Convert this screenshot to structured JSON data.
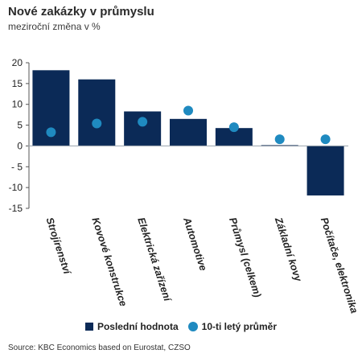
{
  "header": {
    "title": "Nové zakázky v průmyslu",
    "subtitle": "meziroční změna v %"
  },
  "legend": {
    "bar_label": "Poslední hodnota",
    "dot_label": "10-ti letý průměr"
  },
  "source": "Source: KBC Economics based on Eurostat, CZSO",
  "colors": {
    "bar": "#0b2a57",
    "dot": "#1f8ac0"
  },
  "chart_data": {
    "type": "bar",
    "categories": [
      "Strojírenství",
      "Kovové konstrukce",
      "Elektrická zařízení",
      "Automotive",
      "Průmysl (celkem)",
      "Základní kovy",
      "Počítače, elektronika"
    ],
    "series": [
      {
        "name": "Poslední hodnota",
        "type": "bar",
        "values": [
          18.2,
          16.0,
          8.3,
          6.5,
          4.3,
          0.2,
          -11.9
        ]
      },
      {
        "name": "10-ti letý průměr",
        "type": "scatter",
        "values": [
          3.3,
          5.4,
          5.8,
          8.5,
          4.5,
          1.6,
          1.6
        ]
      }
    ],
    "ylim": [
      -15,
      20
    ],
    "yticks": [
      "20",
      "15",
      "10",
      "5",
      "0",
      "- 5",
      "-10",
      "-15"
    ],
    "ytick_values": [
      20,
      15,
      10,
      5,
      0,
      -5,
      -10,
      -15
    ],
    "grid": false,
    "legend_position": "bottom"
  }
}
